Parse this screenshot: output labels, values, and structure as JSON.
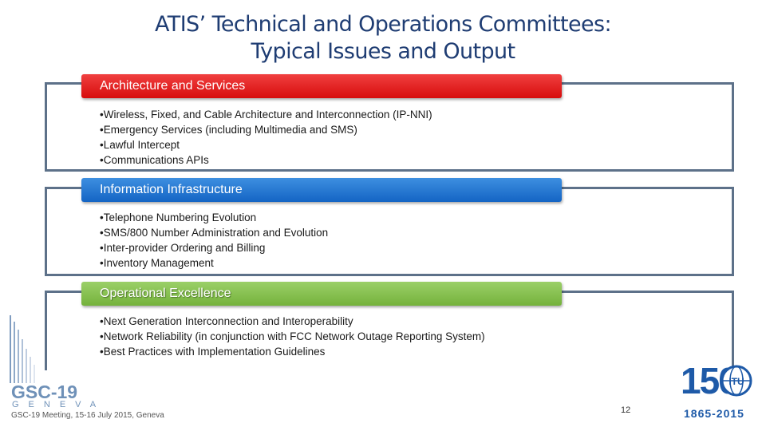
{
  "title": {
    "line1": "ATIS’ Technical and Operations Committees:",
    "line2": "Typical Issues and Output"
  },
  "sections": [
    {
      "header": "Architecture and Services",
      "color": "#e01a1a",
      "items": [
        "Wireless, Fixed, and Cable Architecture and Interconnection (IP-NNI)",
        "Emergency Services (including Multimedia and SMS)",
        "Lawful Intercept",
        "Communications APIs"
      ]
    },
    {
      "header": "Information Infrastructure",
      "color": "#1e70cf",
      "items": [
        "Telephone Numbering Evolution",
        "SMS/800 Number Administration and Evolution",
        "Inter-provider Ordering and Billing",
        "Inventory Management"
      ]
    },
    {
      "header": "Operational Excellence",
      "color": "#82bd48",
      "items": [
        "Next Generation Interconnection and Interoperability",
        "Network Reliability (in conjunction with FCC Network Outage Reporting System)",
        "Best Practices with Implementation Guidelines"
      ]
    }
  ],
  "logo_left": {
    "name": "GSC-19",
    "sub": "GENEVA"
  },
  "footer": "GSC-19 Meeting, 15-16 July 2015, Geneva",
  "page_number": "12",
  "logo_right": {
    "number": "150",
    "dates": "1865-2015",
    "globe_text": "ITU"
  }
}
